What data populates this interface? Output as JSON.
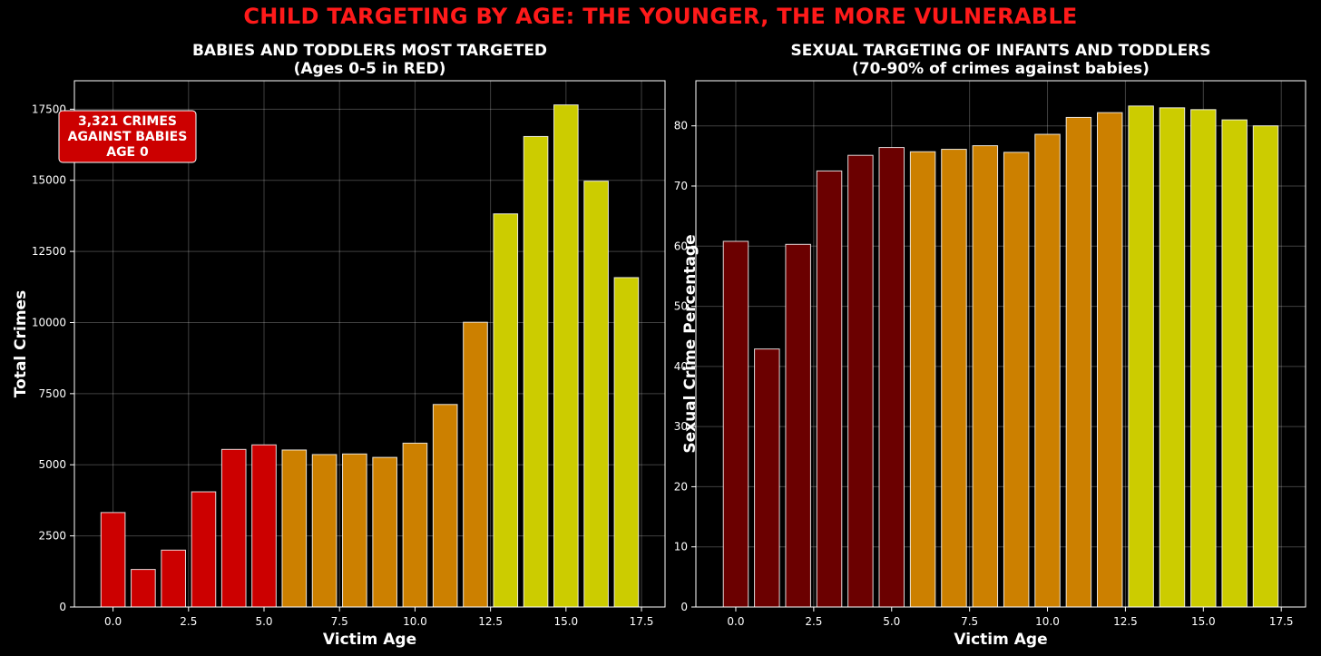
{
  "supertitle": "CHILD TARGETING BY AGE: THE YOUNGER, THE MORE VULNERABLE",
  "colors": {
    "red": "#cc0000",
    "dark_red": "#6b0000",
    "orange": "#cc8000",
    "yellow": "#cccc00",
    "title_red": "#ff1a1a",
    "callout_bg": "#cc0000"
  },
  "chart_data": [
    {
      "type": "bar",
      "title": "BABIES AND TODDLERS MOST TARGETED",
      "subtitle": "(Ages 0-5 in RED)",
      "xlabel": "Victim Age",
      "ylabel": "Total Crimes",
      "x": [
        0,
        1,
        2,
        3,
        4,
        5,
        6,
        7,
        8,
        9,
        10,
        11,
        12,
        13,
        14,
        15,
        16,
        17
      ],
      "values": [
        3321,
        1320,
        2000,
        4050,
        5540,
        5700,
        5520,
        5360,
        5380,
        5260,
        5760,
        7120,
        10010,
        13820,
        16540,
        17650,
        14970,
        11580
      ],
      "bar_colors": [
        "red",
        "red",
        "red",
        "red",
        "red",
        "red",
        "orange",
        "orange",
        "orange",
        "orange",
        "orange",
        "orange",
        "orange",
        "yellow",
        "yellow",
        "yellow",
        "yellow",
        "yellow"
      ],
      "xlim": [
        -1.28,
        18.28
      ],
      "ylim": [
        0,
        18500
      ],
      "xticks": [
        0.0,
        2.5,
        5.0,
        7.5,
        10.0,
        12.5,
        15.0,
        17.5
      ],
      "xtick_labels": [
        "0.0",
        "2.5",
        "5.0",
        "7.5",
        "10.0",
        "12.5",
        "15.0",
        "17.5"
      ],
      "yticks": [
        0,
        2500,
        5000,
        7500,
        10000,
        12500,
        15000,
        17500
      ],
      "ytick_labels": [
        "0",
        "2500",
        "5000",
        "7500",
        "10000",
        "12500",
        "15000",
        "17500"
      ],
      "grid": true,
      "annotation": {
        "lines": [
          "3,321 CRIMES",
          "AGAINST BABIES",
          "AGE 0"
        ],
        "placement": "top-left"
      }
    },
    {
      "type": "bar",
      "title": "SEXUAL TARGETING OF INFANTS AND TODDLERS",
      "subtitle": "(70-90% of crimes against babies)",
      "xlabel": "Victim Age",
      "ylabel": "Sexual Crime Percentage",
      "x": [
        0,
        1,
        2,
        3,
        4,
        5,
        6,
        7,
        8,
        9,
        10,
        11,
        12,
        13,
        14,
        15,
        16,
        17
      ],
      "values": [
        60.8,
        42.9,
        60.3,
        72.5,
        75.1,
        76.4,
        75.7,
        76.1,
        76.7,
        75.6,
        78.6,
        81.4,
        82.2,
        83.3,
        83.0,
        82.7,
        81.0,
        80.0
      ],
      "bar_colors": [
        "dark_red",
        "dark_red",
        "dark_red",
        "dark_red",
        "dark_red",
        "dark_red",
        "orange",
        "orange",
        "orange",
        "orange",
        "orange",
        "orange",
        "orange",
        "yellow",
        "yellow",
        "yellow",
        "yellow",
        "yellow"
      ],
      "xlim": [
        -1.28,
        18.28
      ],
      "ylim": [
        0,
        87.5
      ],
      "xticks": [
        0.0,
        2.5,
        5.0,
        7.5,
        10.0,
        12.5,
        15.0,
        17.5
      ],
      "xtick_labels": [
        "0.0",
        "2.5",
        "5.0",
        "7.5",
        "10.0",
        "12.5",
        "15.0",
        "17.5"
      ],
      "yticks": [
        0,
        10,
        20,
        30,
        40,
        50,
        60,
        70,
        80
      ],
      "ytick_labels": [
        "0",
        "10",
        "20",
        "30",
        "40",
        "50",
        "60",
        "70",
        "80"
      ],
      "grid": true
    }
  ]
}
